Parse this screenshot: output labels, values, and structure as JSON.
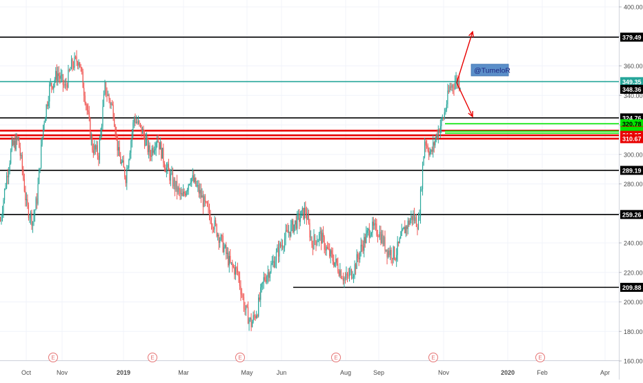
{
  "chart_data": {
    "type": "candlestick",
    "ylim": [
      155,
      405
    ],
    "y_ticks": [
      160,
      180,
      200,
      220,
      240,
      260,
      280,
      300,
      320,
      340,
      360,
      380,
      400
    ],
    "y_tick_labels": [
      "160.00",
      "180.00",
      "200.00",
      "220.00",
      "240.00",
      "260.00",
      "280.00",
      "300.00",
      "320.00",
      "340.00",
      "360.00",
      "380.00",
      "400.00"
    ],
    "x_labels": [
      {
        "text": "Oct",
        "bold": false
      },
      {
        "text": "Nov",
        "bold": false
      },
      {
        "text": "2019",
        "bold": true
      },
      {
        "text": "Mar",
        "bold": false
      },
      {
        "text": "May",
        "bold": false
      },
      {
        "text": "Jun",
        "bold": false
      },
      {
        "text": "Aug",
        "bold": false
      },
      {
        "text": "Sep",
        "bold": false
      },
      {
        "text": "Nov",
        "bold": false
      },
      {
        "text": "2020",
        "bold": true
      },
      {
        "text": "Feb",
        "bold": false
      },
      {
        "text": "Apr",
        "bold": false
      }
    ],
    "earnings_marker": "E",
    "earnings_count": 7,
    "horizontal_levels": [
      {
        "price": 379.49,
        "label": "379.49",
        "color": "#000000",
        "text_color": "#ffffff",
        "kind": "line"
      },
      {
        "price": 349.35,
        "label": "349.35",
        "color": "#26a69a",
        "text_color": "#ffffff",
        "kind": "line"
      },
      {
        "price": 348.36,
        "label": "348.36",
        "color": "#000000",
        "text_color": "#ffffff",
        "kind": "line"
      },
      {
        "price": 324.76,
        "label": "324.76",
        "color": "#000000",
        "text_color": "#ffffff",
        "kind": "line"
      },
      {
        "price": 320.78,
        "label": "320.78",
        "color": "#00e600",
        "text_color": "#000000",
        "kind": "line"
      },
      {
        "price": 316.11,
        "label": "316.11",
        "color": "#e80000",
        "text_color": "#ffffff",
        "kind": "line"
      },
      {
        "price": 315.74,
        "label": "315.74",
        "color": "#00e600",
        "text_color": "#000000",
        "kind": "line"
      },
      {
        "price": 314.48,
        "label": "314.48",
        "color": "#00e600",
        "text_color": "#000000",
        "kind": "line"
      },
      {
        "price": 312.95,
        "label": "312.95",
        "color": "#e80000",
        "text_color": "#ffffff",
        "kind": "line"
      },
      {
        "price": 310.67,
        "label": "310.67",
        "color": "#e80000",
        "text_color": "#ffffff",
        "kind": "line"
      },
      {
        "price": 289.19,
        "label": "289.19",
        "color": "#000000",
        "text_color": "#ffffff",
        "kind": "line"
      },
      {
        "price": 259.26,
        "label": "259.26",
        "color": "#000000",
        "text_color": "#ffffff",
        "kind": "line"
      },
      {
        "price": 209.88,
        "label": "209.88",
        "color": "#000000",
        "text_color": "#ffffff",
        "kind": "line"
      }
    ],
    "drawing_label": "@TumeloR",
    "colors": {
      "up": "#26a69a",
      "down": "#ef5350",
      "grid": "#f0f3fa",
      "axis_text": "#4a4a4a",
      "earnings": "#e57373",
      "label_box": "#5b8fc9",
      "label_box_text": "#1a237e",
      "arrow": "#e80000"
    }
  }
}
